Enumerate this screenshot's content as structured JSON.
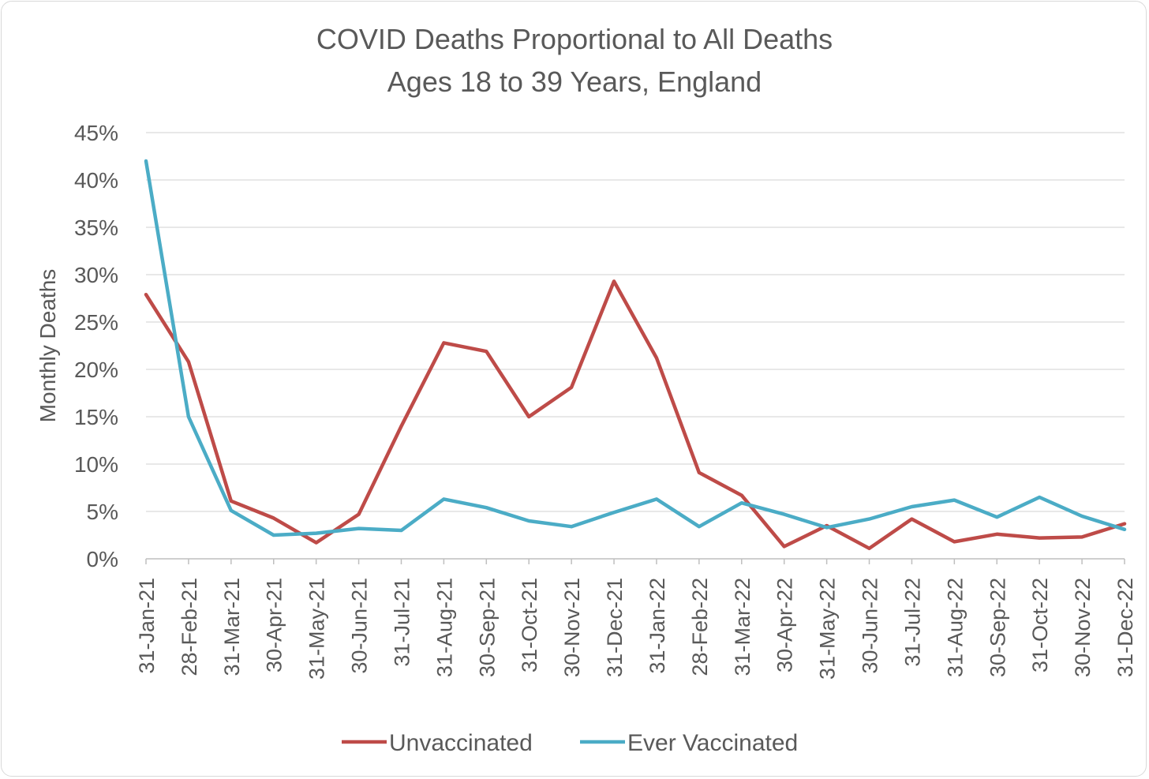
{
  "chart_data": {
    "type": "line",
    "title": "COVID Deaths Proportional to All Deaths",
    "subtitle": "Ages 18 to 39 Years, England",
    "ylabel": "Monthly Deaths",
    "xlabel": "",
    "ylim": [
      0,
      45
    ],
    "y_ticks": [
      "0%",
      "5%",
      "10%",
      "15%",
      "20%",
      "25%",
      "30%",
      "35%",
      "40%",
      "45%"
    ],
    "grid": true,
    "legend_position": "bottom",
    "x": [
      "31-Jan-21",
      "28-Feb-21",
      "31-Mar-21",
      "30-Apr-21",
      "31-May-21",
      "30-Jun-21",
      "31-Jul-21",
      "31-Aug-21",
      "30-Sep-21",
      "31-Oct-21",
      "30-Nov-21",
      "31-Dec-21",
      "31-Jan-22",
      "28-Feb-22",
      "31-Mar-22",
      "30-Apr-22",
      "31-May-22",
      "30-Jun-22",
      "31-Jul-22",
      "31-Aug-22",
      "30-Sep-22",
      "31-Oct-22",
      "30-Nov-22",
      "31-Dec-22"
    ],
    "series": [
      {
        "name": "Unvaccinated",
        "color": "#be4b48",
        "values": [
          27.9,
          20.8,
          6.1,
          4.3,
          1.7,
          4.7,
          14.0,
          22.8,
          21.9,
          15.0,
          18.1,
          29.3,
          21.2,
          9.1,
          6.7,
          1.3,
          3.5,
          1.1,
          4.2,
          1.8,
          2.6,
          2.2,
          2.3,
          3.7
        ]
      },
      {
        "name": "Ever Vaccinated",
        "color": "#4bacc6",
        "values": [
          42.0,
          15.0,
          5.1,
          2.5,
          2.7,
          3.2,
          3.0,
          6.3,
          5.4,
          4.0,
          3.4,
          4.9,
          6.3,
          3.4,
          5.9,
          4.7,
          3.3,
          4.2,
          5.5,
          6.2,
          4.4,
          6.5,
          4.5,
          3.1
        ]
      }
    ]
  }
}
